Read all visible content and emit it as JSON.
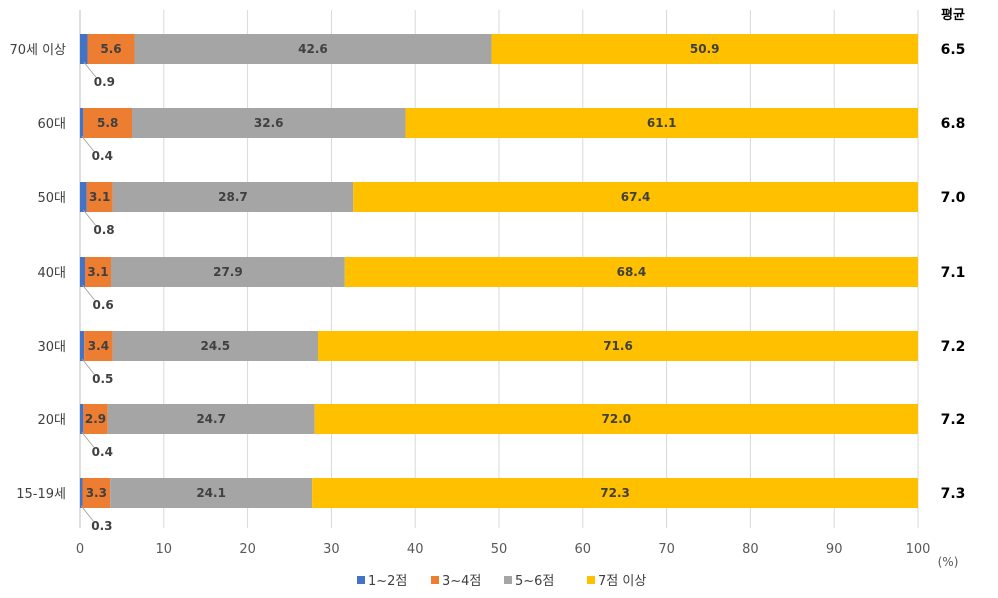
{
  "chart_data": {
    "type": "bar",
    "orientation": "horizontal",
    "stacked": true,
    "categories": [
      "70세 이상",
      "60대",
      "50대",
      "40대",
      "30대",
      "20대",
      "15-19세"
    ],
    "series": [
      {
        "name": "1~2점",
        "color": "#4472C4",
        "values": [
          0.9,
          0.4,
          0.8,
          0.6,
          0.5,
          0.4,
          0.3
        ]
      },
      {
        "name": "3~4점",
        "color": "#ED7D31",
        "values": [
          5.6,
          5.8,
          3.1,
          3.1,
          3.4,
          2.9,
          3.3
        ]
      },
      {
        "name": "5~6점",
        "color": "#A5A5A5",
        "values": [
          42.6,
          32.6,
          28.7,
          27.9,
          24.5,
          24.7,
          24.1
        ]
      },
      {
        "name": "7점 이상",
        "color": "#FFC000",
        "values": [
          50.9,
          61.1,
          67.4,
          68.4,
          71.6,
          72.0,
          72.3
        ]
      }
    ],
    "value_labels": [
      [
        "0.9",
        "5.6",
        "42.6",
        "50.9"
      ],
      [
        "0.4",
        "5.8",
        "32.6",
        "61.1"
      ],
      [
        "0.8",
        "3.1",
        "28.7",
        "67.4"
      ],
      [
        "0.6",
        "3.1",
        "27.9",
        "68.4"
      ],
      [
        "0.5",
        "3.4",
        "24.5",
        "71.6"
      ],
      [
        "0.4",
        "2.9",
        "24.7",
        "72.0"
      ],
      [
        "0.3",
        "3.3",
        "24.1",
        "72.3"
      ]
    ],
    "averages_title": "평균",
    "averages": [
      "6.5",
      "6.8",
      "7.0",
      "7.1",
      "7.2",
      "7.2",
      "7.3"
    ],
    "xlim": [
      0,
      100
    ],
    "xticks": [
      "0",
      "10",
      "20",
      "30",
      "40",
      "50",
      "60",
      "70",
      "80",
      "90",
      "100"
    ],
    "unit": "(%)",
    "grid": true,
    "legend_position": "bottom"
  }
}
